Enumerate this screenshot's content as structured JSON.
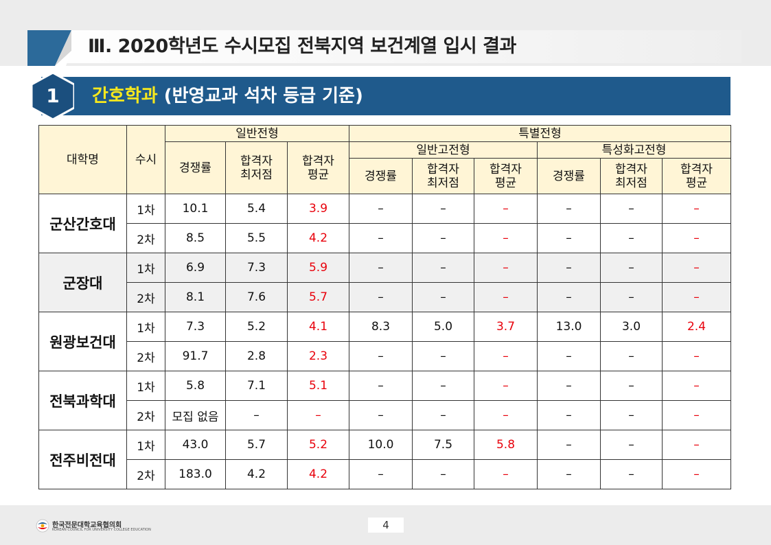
{
  "page_title": "Ⅲ. 2020학년도 수시모집 전북지역 보건계열 입시 결과",
  "section": {
    "number": "1",
    "title_highlight": "간호학과",
    "title_rest": " (반영교과  석차 등급 기준)"
  },
  "table": {
    "headers": {
      "university": "대학명",
      "round": "수시",
      "general": "일반전형",
      "special": "특별전형",
      "special_general_hs": "일반고전형",
      "special_specialized_hs": "특성화고전형",
      "competition": "경쟁률",
      "min_score": "합격자\n최저점",
      "avg_score": "합격자\n평균"
    },
    "universities": [
      {
        "name": "군산간호대",
        "rows": [
          {
            "round": "1차",
            "g_comp": "10.1",
            "g_min": "5.4",
            "g_avg": "3.9",
            "s1_comp": "–",
            "s1_min": "–",
            "s1_avg": "–",
            "s2_comp": "–",
            "s2_min": "–",
            "s2_avg": "–"
          },
          {
            "round": "2차",
            "g_comp": "8.5",
            "g_min": "5.5",
            "g_avg": "4.2",
            "s1_comp": "–",
            "s1_min": "–",
            "s1_avg": "–",
            "s2_comp": "–",
            "s2_min": "–",
            "s2_avg": "–"
          }
        ]
      },
      {
        "name": "군장대",
        "rows": [
          {
            "round": "1차",
            "g_comp": "6.9",
            "g_min": "7.3",
            "g_avg": "5.9",
            "s1_comp": "–",
            "s1_min": "–",
            "s1_avg": "–",
            "s2_comp": "–",
            "s2_min": "–",
            "s2_avg": "–"
          },
          {
            "round": "2차",
            "g_comp": "8.1",
            "g_min": "7.6",
            "g_avg": "5.7",
            "s1_comp": "–",
            "s1_min": "–",
            "s1_avg": "–",
            "s2_comp": "–",
            "s2_min": "–",
            "s2_avg": "–"
          }
        ]
      },
      {
        "name": "원광보건대",
        "rows": [
          {
            "round": "1차",
            "g_comp": "7.3",
            "g_min": "5.2",
            "g_avg": "4.1",
            "s1_comp": "8.3",
            "s1_min": "5.0",
            "s1_avg": "3.7",
            "s2_comp": "13.0",
            "s2_min": "3.0",
            "s2_avg": "2.4"
          },
          {
            "round": "2차",
            "g_comp": "91.7",
            "g_min": "2.8",
            "g_avg": "2.3",
            "s1_comp": "–",
            "s1_min": "–",
            "s1_avg": "–",
            "s2_comp": "–",
            "s2_min": "–",
            "s2_avg": "–"
          }
        ]
      },
      {
        "name": "전북과학대",
        "rows": [
          {
            "round": "1차",
            "g_comp": "5.8",
            "g_min": "7.1",
            "g_avg": "5.1",
            "s1_comp": "–",
            "s1_min": "–",
            "s1_avg": "–",
            "s2_comp": "–",
            "s2_min": "–",
            "s2_avg": "–"
          },
          {
            "round": "2차",
            "g_comp": "모집 없음",
            "g_min": "–",
            "g_avg": "–",
            "s1_comp": "–",
            "s1_min": "–",
            "s1_avg": "–",
            "s2_comp": "–",
            "s2_min": "–",
            "s2_avg": "–"
          }
        ]
      },
      {
        "name": "전주비전대",
        "rows": [
          {
            "round": "1차",
            "g_comp": "43.0",
            "g_min": "5.7",
            "g_avg": "5.2",
            "s1_comp": "10.0",
            "s1_min": "7.5",
            "s1_avg": "5.8",
            "s2_comp": "–",
            "s2_min": "–",
            "s2_avg": "–"
          },
          {
            "round": "2차",
            "g_comp": "183.0",
            "g_min": "4.2",
            "g_avg": "4.2",
            "s1_comp": "–",
            "s1_min": "–",
            "s1_avg": "–",
            "s2_comp": "–",
            "s2_min": "–",
            "s2_avg": "–"
          }
        ]
      }
    ]
  },
  "footer": {
    "org_name": "한국전문대학교육협의회",
    "org_name_en": "KOREAN COUNCIL FOR UNIVERSITY COLLEGE EDUCATION",
    "page_number": "4"
  },
  "colors": {
    "section_bar": "#1f5a8c",
    "highlight_yellow": "#f7e81d",
    "header_fill": "#fff5d6",
    "avg_red": "#e8000b"
  }
}
